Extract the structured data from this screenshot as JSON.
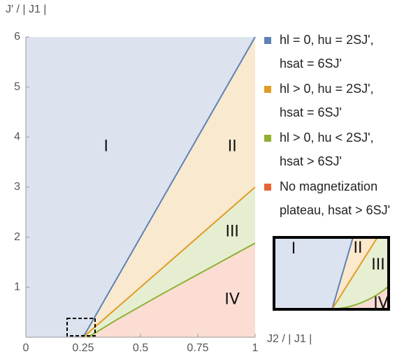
{
  "chart_data": {
    "type": "phase-diagram",
    "xlabel": "J2 / | J1 |",
    "ylabel": "J′ / | J1 |",
    "xlim": [
      0,
      1
    ],
    "ylim": [
      0,
      6
    ],
    "xticks": [
      0,
      0.25,
      0.5,
      0.75,
      1
    ],
    "yticks": [
      1,
      2,
      3,
      4,
      5,
      6
    ],
    "series": [
      {
        "name": "hl = 0, hu = 2SJ', hsat = 6SJ'",
        "color": "#5e81b5",
        "label": "I"
      },
      {
        "name": "hl > 0, hu = 2SJ', hsat = 6SJ'",
        "color": "#e19c24",
        "label": "II"
      },
      {
        "name": "hl > 0, hu < 2SJ', hsat > 6SJ'",
        "color": "#8fb032",
        "label": "III"
      },
      {
        "name": "No magnetization plateau, hsat > 6SJ'",
        "color": "#eb6235",
        "label": "IV"
      }
    ],
    "boundaries": [
      {
        "x": [
          0.25,
          1
        ],
        "values": [
          0,
          6
        ]
      },
      {
        "x": [
          0.25,
          1
        ],
        "values": [
          0,
          3
        ]
      },
      {
        "x": [
          0.27,
          0.3,
          0.4,
          0.5,
          0.6,
          0.7,
          0.8,
          0.9,
          1
        ],
        "values": [
          0,
          0.08,
          0.36,
          0.62,
          0.88,
          1.13,
          1.38,
          1.63,
          1.88
        ]
      }
    ],
    "inset": {
      "labels": [
        "I",
        "II",
        "III",
        "IV"
      ]
    }
  }
}
